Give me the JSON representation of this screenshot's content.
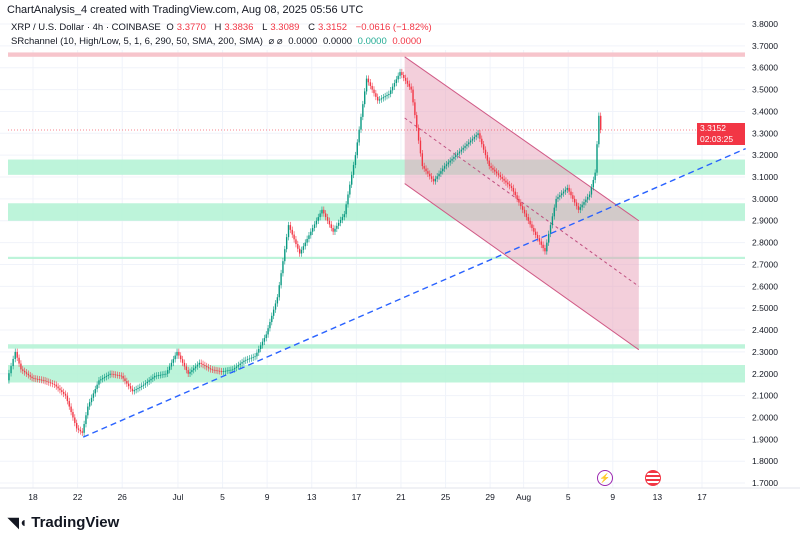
{
  "header": {
    "caption": "ChartAnalysis_4 created with TradingView.com, Aug 08, 2025 05:56 UTC"
  },
  "legend": {
    "symbol": "XRP / U.S. Dollar · 4h · COINBASE",
    "o_label": "O",
    "o": "3.3770",
    "h_label": "H",
    "h": "3.3836",
    "l_label": "L",
    "l": "3.3089",
    "c_label": "C",
    "c": "3.3152",
    "change": "−0.0616 (−1.82%)",
    "indicator": "SRchannel (10, High/Low, 5, 1, 6, 290, 50, SMA, 200, SMA)",
    "ind_v1": "0.0000",
    "ind_v2": "0.0000",
    "ind_v3": "0.0000",
    "ind_v4": "0.0000"
  },
  "price_tag": {
    "price": "3.3152",
    "countdown": "02:03:25"
  },
  "brand": {
    "name": "TradingView"
  },
  "icons": {
    "event1": "lightning-icon",
    "event2": "us-flag-icon"
  },
  "colors": {
    "up": "#089981",
    "down": "#f23645",
    "zone": "#b2f2d3",
    "resistance": "#f7c5cc",
    "channel": "#e8a0b8",
    "trend": "#2962ff"
  },
  "chart_data": {
    "type": "candlestick",
    "ylim": [
      1.65,
      3.82
    ],
    "yticks": [
      "3.8000",
      "3.7000",
      "3.6000",
      "3.5000",
      "3.4000",
      "3.3000",
      "3.2000",
      "3.1000",
      "3.0000",
      "2.9000",
      "2.8000",
      "2.7000",
      "2.6000",
      "2.5000",
      "2.4000",
      "2.3000",
      "2.2000",
      "2.1000",
      "2.0000",
      "1.9000",
      "1.8000",
      "1.7000"
    ],
    "xticks": [
      {
        "label": "18",
        "date": "2025-06-18"
      },
      {
        "label": "22",
        "date": "2025-06-22"
      },
      {
        "label": "26",
        "date": "2025-06-26"
      },
      {
        "label": "Jul",
        "date": "2025-07-01"
      },
      {
        "label": "5",
        "date": "2025-07-05"
      },
      {
        "label": "9",
        "date": "2025-07-09"
      },
      {
        "label": "13",
        "date": "2025-07-13"
      },
      {
        "label": "17",
        "date": "2025-07-17"
      },
      {
        "label": "21",
        "date": "2025-07-21"
      },
      {
        "label": "25",
        "date": "2025-07-25"
      },
      {
        "label": "29",
        "date": "2025-07-29"
      },
      {
        "label": "Aug",
        "date": "2025-08-01"
      },
      {
        "label": "5",
        "date": "2025-08-05"
      },
      {
        "label": "9",
        "date": "2025-08-09"
      },
      {
        "label": "13",
        "date": "2025-08-13"
      },
      {
        "label": "17",
        "date": "2025-08-17"
      }
    ],
    "close": [
      [
        "2025-06-15T18:00",
        2.17
      ],
      [
        "2025-06-16T12:00",
        2.3
      ],
      [
        "2025-06-17",
        2.22
      ],
      [
        "2025-06-18",
        2.18
      ],
      [
        "2025-06-19",
        2.17
      ],
      [
        "2025-06-20",
        2.15
      ],
      [
        "2025-06-21",
        2.1
      ],
      [
        "2025-06-22",
        1.95
      ],
      [
        "2025-06-22T12:00",
        1.93
      ],
      [
        "2025-06-23",
        2.05
      ],
      [
        "2025-06-24",
        2.17
      ],
      [
        "2025-06-25",
        2.2
      ],
      [
        "2025-06-26",
        2.19
      ],
      [
        "2025-06-27",
        2.12
      ],
      [
        "2025-06-28",
        2.15
      ],
      [
        "2025-06-29",
        2.19
      ],
      [
        "2025-06-30",
        2.2
      ],
      [
        "2025-07-01",
        2.3
      ],
      [
        "2025-07-02",
        2.2
      ],
      [
        "2025-07-03",
        2.25
      ],
      [
        "2025-07-04",
        2.22
      ],
      [
        "2025-07-05",
        2.21
      ],
      [
        "2025-07-06",
        2.22
      ],
      [
        "2025-07-07",
        2.26
      ],
      [
        "2025-07-08",
        2.28
      ],
      [
        "2025-07-09",
        2.38
      ],
      [
        "2025-07-10",
        2.55
      ],
      [
        "2025-07-11",
        2.88
      ],
      [
        "2025-07-12",
        2.75
      ],
      [
        "2025-07-13",
        2.85
      ],
      [
        "2025-07-14",
        2.95
      ],
      [
        "2025-07-15",
        2.85
      ],
      [
        "2025-07-16",
        2.93
      ],
      [
        "2025-07-17",
        3.2
      ],
      [
        "2025-07-18",
        3.55
      ],
      [
        "2025-07-19",
        3.45
      ],
      [
        "2025-07-20",
        3.48
      ],
      [
        "2025-07-21",
        3.58
      ],
      [
        "2025-07-22",
        3.5
      ],
      [
        "2025-07-23",
        3.15
      ],
      [
        "2025-07-24",
        3.08
      ],
      [
        "2025-07-25",
        3.15
      ],
      [
        "2025-07-26",
        3.2
      ],
      [
        "2025-07-27",
        3.25
      ],
      [
        "2025-07-28",
        3.3
      ],
      [
        "2025-07-29",
        3.15
      ],
      [
        "2025-07-30",
        3.1
      ],
      [
        "2025-07-31",
        3.05
      ],
      [
        "2025-08-01",
        2.95
      ],
      [
        "2025-08-02",
        2.85
      ],
      [
        "2025-08-03",
        2.76
      ],
      [
        "2025-08-04",
        3.0
      ],
      [
        "2025-08-05",
        3.05
      ],
      [
        "2025-08-06",
        2.95
      ],
      [
        "2025-08-07",
        3.02
      ],
      [
        "2025-08-07T12:00",
        3.12
      ],
      [
        "2025-08-07T20:00",
        3.38
      ],
      [
        "2025-08-08",
        3.3152
      ]
    ],
    "zones": [
      [
        3.11,
        3.18
      ],
      [
        2.9,
        2.98
      ],
      [
        2.725,
        2.735
      ],
      [
        2.315,
        2.335
      ],
      [
        2.16,
        2.24
      ]
    ],
    "resistance_zone": [
      3.65,
      3.67
    ],
    "current_price": 3.3152,
    "channel": {
      "start": "2025-07-21T08:00",
      "end": "2025-08-11T08:00",
      "upper": [
        3.65,
        2.9
      ],
      "mid": [
        3.37,
        2.6
      ],
      "lower": [
        3.07,
        2.31
      ]
    },
    "trendline": {
      "from": [
        "2025-06-22T12:00",
        1.91
      ],
      "to": [
        "2025-08-20T22:00",
        3.23
      ]
    }
  }
}
